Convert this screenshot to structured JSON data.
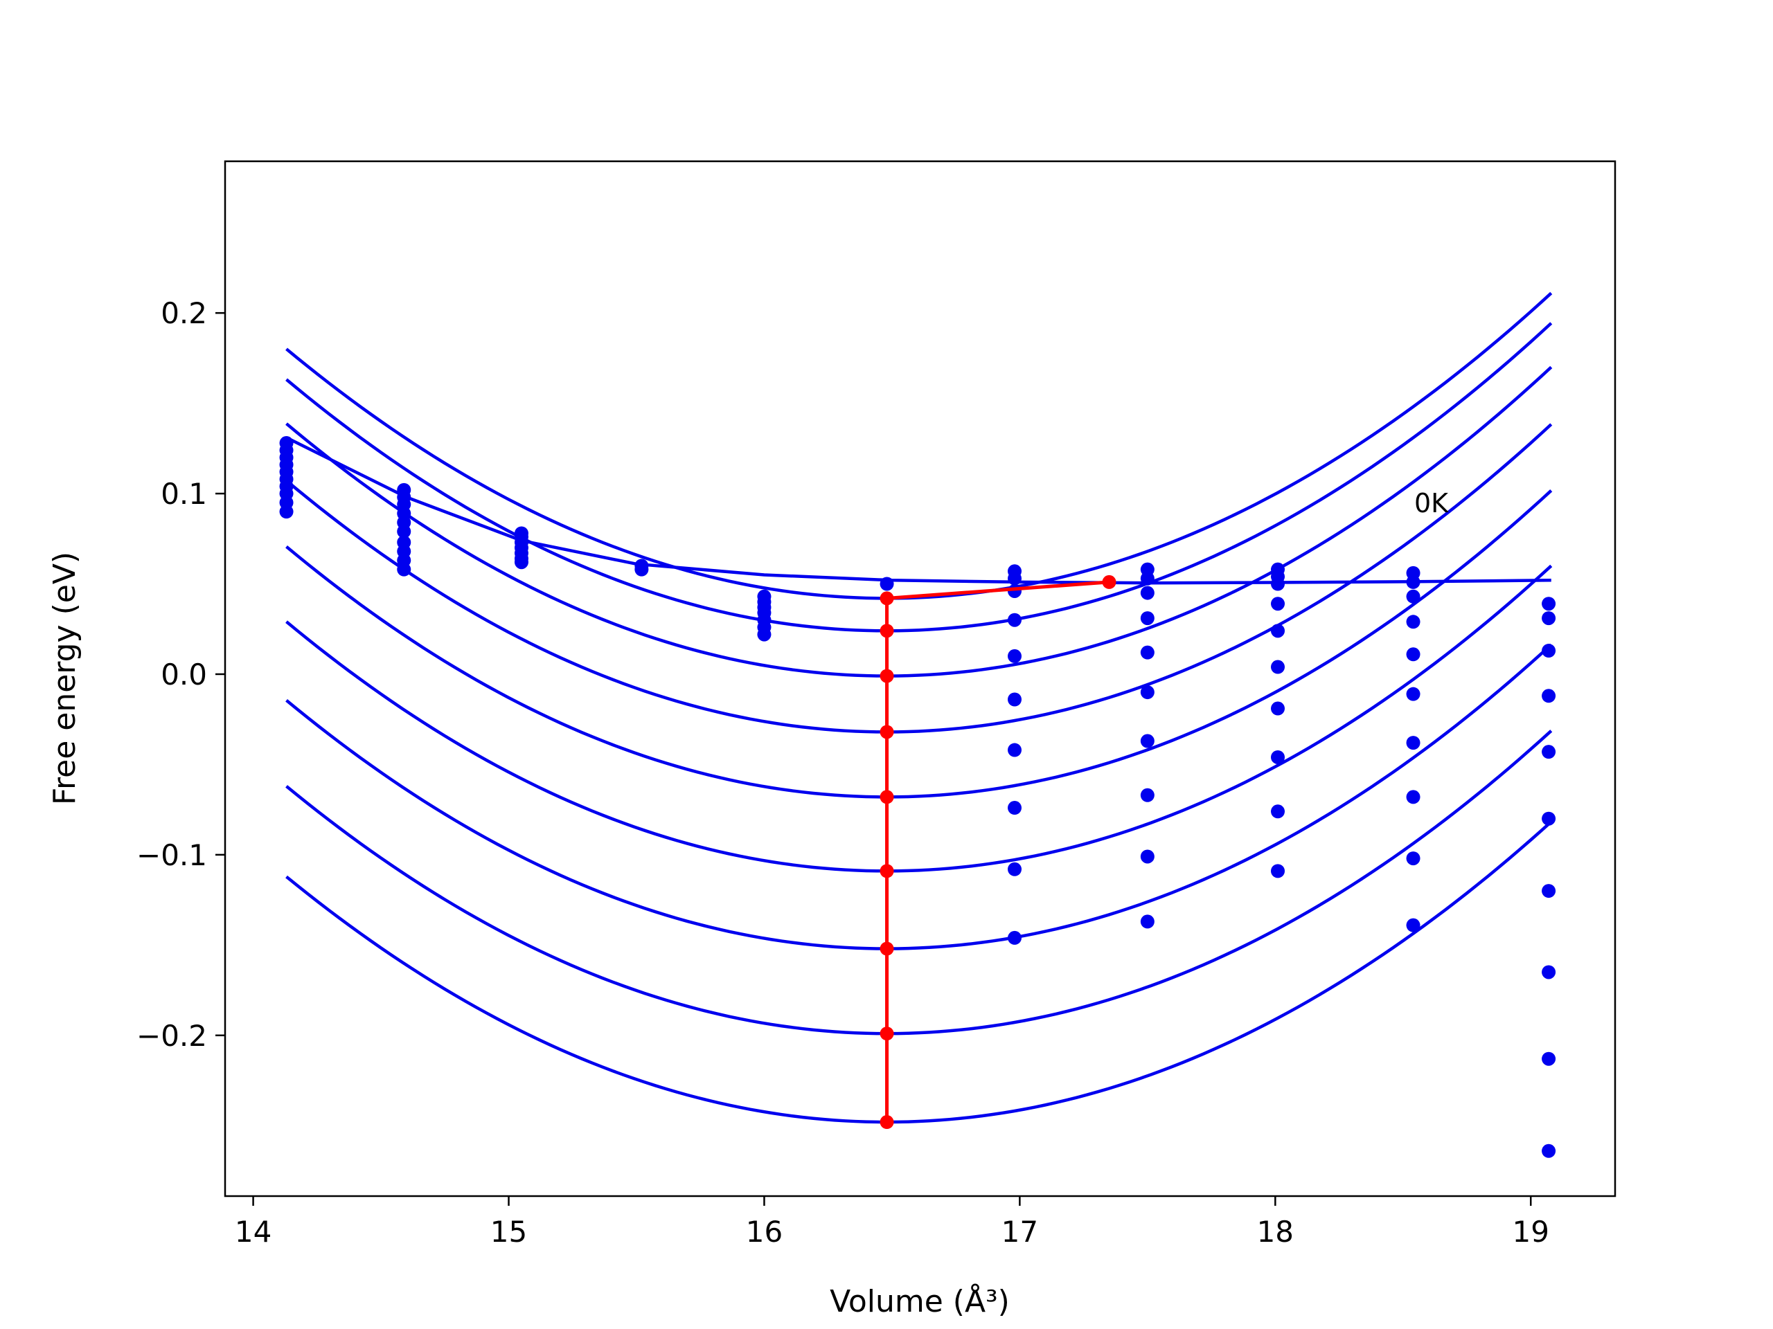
{
  "chart_data": {
    "type": "line",
    "title": "",
    "xlabel": "Volume (Å³)",
    "ylabel": "Free energy (eV)",
    "xlim": [
      13.89,
      19.33
    ],
    "ylim": [
      -0.289,
      0.284
    ],
    "xticks": [
      14,
      15,
      16,
      17,
      18,
      19
    ],
    "yticks": [
      -0.2,
      -0.1,
      0.0,
      0.1,
      0.2
    ],
    "xtick_labels": [
      "14",
      "15",
      "16",
      "17",
      "18",
      "19"
    ],
    "ytick_labels": [
      "−0.2",
      "−0.1",
      "0.0",
      "0.1",
      "0.2"
    ],
    "grid": false,
    "annotations": [
      {
        "text": "0K",
        "x": 18.55,
        "y": 0.093
      }
    ],
    "colors": {
      "curves": "#0000ee",
      "points": "#0000ee",
      "path": "#ff0000",
      "axes": "#000000"
    },
    "fit_curves": {
      "x_range": [
        14.13,
        19.08
      ],
      "curves": [
        {
          "v0": 16.48,
          "f0": 0.042,
          "c": 0.025
        },
        {
          "v0": 16.48,
          "f0": 0.024,
          "c": 0.0252
        },
        {
          "v0": 16.48,
          "f0": -0.001,
          "c": 0.0253
        },
        {
          "v0": 16.48,
          "f0": -0.032,
          "c": 0.0252
        },
        {
          "v0": 16.48,
          "f0": -0.068,
          "c": 0.0251
        },
        {
          "v0": 16.48,
          "f0": -0.109,
          "c": 0.025
        },
        {
          "v0": 16.48,
          "f0": -0.152,
          "c": 0.0249
        },
        {
          "v0": 16.48,
          "f0": -0.199,
          "c": 0.0248
        },
        {
          "v0": 16.48,
          "f0": -0.248,
          "c": 0.0246
        }
      ]
    },
    "volume_line": {
      "x": [
        14.13,
        14.6,
        15.05,
        15.5,
        16.0,
        16.5,
        17.0,
        17.5,
        18.0,
        18.5,
        19.08
      ],
      "y": [
        0.131,
        0.098,
        0.074,
        0.061,
        0.055,
        0.052,
        0.051,
        0.0505,
        0.0508,
        0.0512,
        0.052
      ]
    },
    "points": [
      {
        "x": 14.13,
        "y": [
          0.128,
          0.124,
          0.12,
          0.116,
          0.112,
          0.108,
          0.104,
          0.1,
          0.095,
          0.09
        ]
      },
      {
        "x": 14.59,
        "y": [
          0.102,
          0.098,
          0.094,
          0.089,
          0.084,
          0.079,
          0.073,
          0.068,
          0.063,
          0.058
        ]
      },
      {
        "x": 15.05,
        "y": [
          0.078,
          0.076,
          0.073,
          0.07,
          0.067,
          0.064,
          0.062
        ]
      },
      {
        "x": 15.52,
        "y": [
          0.06,
          0.058
        ]
      },
      {
        "x": 16.0,
        "y": [
          0.043,
          0.04,
          0.037,
          0.034,
          0.03,
          0.026,
          0.022
        ]
      },
      {
        "x": 16.48,
        "y": [
          0.05
        ]
      },
      {
        "x": 16.98,
        "y": [
          0.057,
          0.053,
          0.046,
          0.03,
          0.01,
          -0.014,
          -0.042,
          -0.074,
          -0.108,
          -0.146
        ]
      },
      {
        "x": 17.5,
        "y": [
          0.058,
          0.053,
          0.045,
          0.031,
          0.012,
          -0.01,
          -0.037,
          -0.067,
          -0.101,
          -0.137
        ]
      },
      {
        "x": 18.01,
        "y": [
          0.058,
          0.054,
          0.05,
          0.039,
          0.024,
          0.004,
          -0.019,
          -0.046,
          -0.076,
          -0.109
        ]
      },
      {
        "x": 18.54,
        "y": [
          0.056,
          0.051,
          0.043,
          0.029,
          0.011,
          -0.011,
          -0.038,
          -0.068,
          -0.102,
          -0.139
        ]
      },
      {
        "x": 19.07,
        "y": [
          0.039,
          0.031,
          0.013,
          -0.012,
          -0.043,
          -0.08,
          -0.12,
          -0.165,
          -0.213,
          -0.264
        ]
      }
    ],
    "min_path": {
      "x": [
        16.48,
        16.48,
        16.48,
        16.48,
        16.48,
        16.48,
        16.48,
        16.48,
        16.48,
        17.35
      ],
      "y": [
        -0.248,
        -0.199,
        -0.152,
        -0.109,
        -0.068,
        -0.032,
        -0.001,
        0.024,
        0.042,
        0.051
      ]
    }
  }
}
